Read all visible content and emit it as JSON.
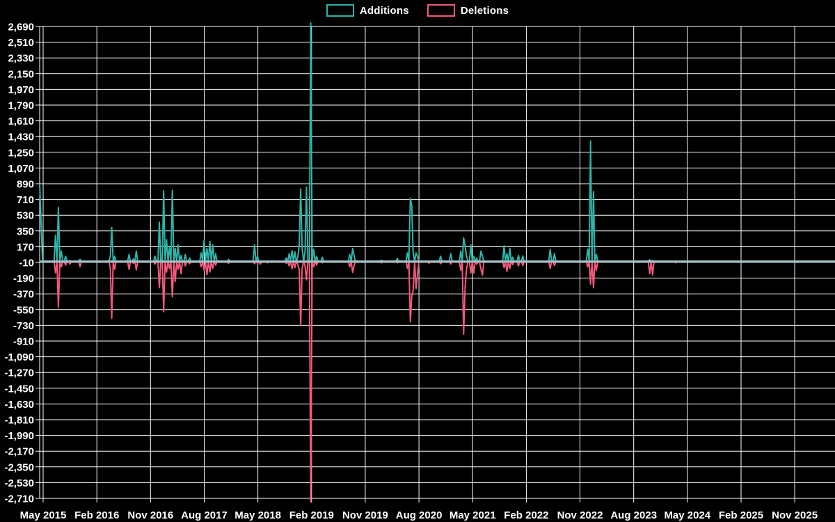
{
  "legend": {
    "additions_label": "Additions",
    "deletions_label": "Deletions"
  },
  "colors": {
    "additions": "#2db5aa",
    "deletions": "#f4597c",
    "zero_line": "#a2c3c9",
    "grid": "#ffffff",
    "text": "#ffffff",
    "background": "#000000"
  },
  "chart_data": {
    "type": "line",
    "title": "",
    "xlabel": "",
    "ylabel": "",
    "grid": true,
    "legend_position": "top-center",
    "x_tick_labels": [
      "May 2015",
      "Feb 2016",
      "Nov 2016",
      "Aug 2017",
      "May 2018",
      "Feb 2019",
      "Nov 2019",
      "Aug 2020",
      "May 2021",
      "Feb 2022",
      "Nov 2022",
      "Aug 2023",
      "May 2024",
      "Feb 2025",
      "Nov 2025"
    ],
    "y_tick_values": [
      2690,
      2510,
      2330,
      2150,
      1970,
      1790,
      1610,
      1430,
      1250,
      1070,
      890,
      710,
      530,
      350,
      170,
      -10,
      -190,
      -370,
      -550,
      -730,
      -910,
      -1090,
      -1270,
      -1450,
      -1630,
      -1810,
      -1990,
      -2170,
      -2350,
      -2530,
      -2710
    ],
    "y_tick_labels": [
      "2,690",
      "2,510",
      "2,330",
      "2,150",
      "1,970",
      "1,790",
      "1,610",
      "1,430",
      "1,250",
      "1,070",
      "890",
      "710",
      "530",
      "350",
      "170",
      "-10",
      "-190",
      "-370",
      "-550",
      "-730",
      "-910",
      "-1,090",
      "-1,270",
      "-1,450",
      "-1,630",
      "-1,810",
      "-1,990",
      "-2,170",
      "-2,350",
      "-2,530",
      "-2,710"
    ],
    "ylim": [
      -2710,
      2690
    ],
    "weeks_total": 552,
    "series": [
      {
        "name": "Additions",
        "default": 0,
        "points": [
          [
            0,
            890
          ],
          [
            1,
            430
          ],
          [
            2,
            20
          ],
          [
            11,
            300
          ],
          [
            13,
            620
          ],
          [
            15,
            120
          ],
          [
            18,
            60
          ],
          [
            21,
            10
          ],
          [
            28,
            25
          ],
          [
            49,
            60
          ],
          [
            50,
            390
          ],
          [
            52,
            60
          ],
          [
            62,
            80
          ],
          [
            65,
            30
          ],
          [
            67,
            120
          ],
          [
            80,
            60
          ],
          [
            83,
            450
          ],
          [
            86,
            810
          ],
          [
            88,
            250
          ],
          [
            90,
            160
          ],
          [
            92,
            815
          ],
          [
            94,
            150
          ],
          [
            96,
            190
          ],
          [
            98,
            70
          ],
          [
            101,
            80
          ],
          [
            104,
            40
          ],
          [
            112,
            100
          ],
          [
            114,
            245
          ],
          [
            116,
            150
          ],
          [
            118,
            230
          ],
          [
            120,
            190
          ],
          [
            122,
            90
          ],
          [
            131,
            25
          ],
          [
            149,
            190
          ],
          [
            151,
            60
          ],
          [
            171,
            40
          ],
          [
            173,
            90
          ],
          [
            175,
            125
          ],
          [
            177,
            110
          ],
          [
            179,
            50
          ],
          [
            180,
            200
          ],
          [
            181,
            830
          ],
          [
            182,
            150
          ],
          [
            184,
            112
          ],
          [
            185,
            850
          ],
          [
            188,
            2730
          ],
          [
            190,
            140
          ],
          [
            192,
            60
          ],
          [
            196,
            50
          ],
          [
            215,
            80
          ],
          [
            217,
            150
          ],
          [
            218,
            70
          ],
          [
            237,
            15
          ],
          [
            248,
            35
          ],
          [
            255,
            100
          ],
          [
            257,
            723
          ],
          [
            258,
            640
          ],
          [
            259,
            100
          ],
          [
            261,
            100
          ],
          [
            262,
            60
          ],
          [
            278,
            60
          ],
          [
            285,
            90
          ],
          [
            292,
            120
          ],
          [
            294,
            270
          ],
          [
            295,
            180
          ],
          [
            296,
            60
          ],
          [
            299,
            190
          ],
          [
            301,
            60
          ],
          [
            303,
            40
          ],
          [
            306,
            120
          ],
          [
            307,
            60
          ],
          [
            322,
            180
          ],
          [
            324,
            90
          ],
          [
            326,
            152
          ],
          [
            328,
            50
          ],
          [
            332,
            70
          ],
          [
            335,
            65
          ],
          [
            354,
            140
          ],
          [
            357,
            90
          ],
          [
            380,
            140
          ],
          [
            382,
            1379
          ],
          [
            384,
            800
          ],
          [
            386,
            80
          ],
          [
            423,
            20
          ],
          [
            425,
            10
          ]
        ]
      },
      {
        "name": "Deletions",
        "default": 0,
        "points": [
          [
            11,
            -130
          ],
          [
            13,
            -525
          ],
          [
            15,
            -60
          ],
          [
            18,
            -40
          ],
          [
            21,
            -30
          ],
          [
            28,
            -60
          ],
          [
            49,
            -80
          ],
          [
            50,
            -650
          ],
          [
            52,
            -90
          ],
          [
            62,
            -90
          ],
          [
            65,
            -20
          ],
          [
            67,
            -95
          ],
          [
            80,
            -30
          ],
          [
            83,
            -300
          ],
          [
            86,
            -575
          ],
          [
            88,
            -120
          ],
          [
            90,
            -80
          ],
          [
            92,
            -405
          ],
          [
            94,
            -230
          ],
          [
            96,
            -90
          ],
          [
            98,
            -140
          ],
          [
            101,
            -50
          ],
          [
            104,
            -25
          ],
          [
            112,
            -60
          ],
          [
            114,
            -100
          ],
          [
            116,
            -150
          ],
          [
            118,
            -120
          ],
          [
            120,
            -80
          ],
          [
            122,
            -40
          ],
          [
            131,
            -20
          ],
          [
            149,
            -25
          ],
          [
            151,
            -20
          ],
          [
            153,
            -30
          ],
          [
            158,
            -15
          ],
          [
            171,
            -20
          ],
          [
            173,
            -50
          ],
          [
            175,
            -85
          ],
          [
            177,
            -70
          ],
          [
            179,
            -30
          ],
          [
            180,
            -100
          ],
          [
            181,
            -735
          ],
          [
            182,
            -80
          ],
          [
            184,
            -50
          ],
          [
            185,
            -210
          ],
          [
            188,
            -2750
          ],
          [
            190,
            -60
          ],
          [
            192,
            -40
          ],
          [
            196,
            -15
          ],
          [
            215,
            -60
          ],
          [
            217,
            -125
          ],
          [
            218,
            -50
          ],
          [
            237,
            -15
          ],
          [
            248,
            -15
          ],
          [
            255,
            -80
          ],
          [
            257,
            -690
          ],
          [
            258,
            -400
          ],
          [
            259,
            -325
          ],
          [
            261,
            -310
          ],
          [
            262,
            -150
          ],
          [
            270,
            -20
          ],
          [
            278,
            -25
          ],
          [
            285,
            -30
          ],
          [
            292,
            -100
          ],
          [
            294,
            -830
          ],
          [
            295,
            -300
          ],
          [
            296,
            -80
          ],
          [
            299,
            -130
          ],
          [
            301,
            -130
          ],
          [
            303,
            -30
          ],
          [
            306,
            -90
          ],
          [
            307,
            -155
          ],
          [
            322,
            -70
          ],
          [
            324,
            -113
          ],
          [
            326,
            -80
          ],
          [
            328,
            -35
          ],
          [
            332,
            -50
          ],
          [
            335,
            -45
          ],
          [
            354,
            -80
          ],
          [
            357,
            -45
          ],
          [
            380,
            -60
          ],
          [
            382,
            -260
          ],
          [
            384,
            -300
          ],
          [
            386,
            -100
          ],
          [
            423,
            -140
          ],
          [
            425,
            -155
          ],
          [
            441,
            -15
          ]
        ]
      }
    ]
  }
}
